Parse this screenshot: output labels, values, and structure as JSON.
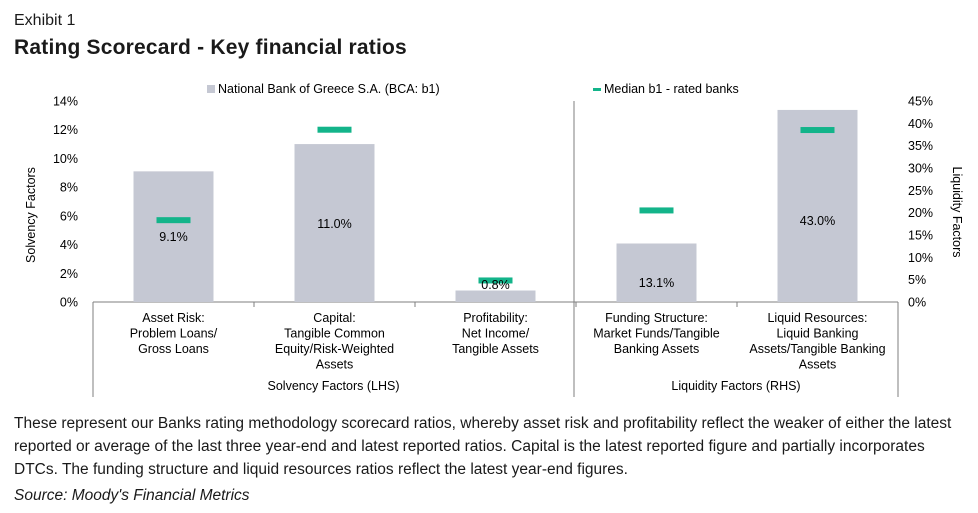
{
  "header": {
    "exhibit": "Exhibit 1",
    "title": "Rating Scorecard - Key financial ratios"
  },
  "legend": {
    "bank": "National Bank of Greece S.A. (BCA: b1)",
    "median": "Median b1 - rated banks"
  },
  "colors": {
    "bar": "#c5c8d3",
    "median": "#13b48a",
    "axis": "#7f7f7f"
  },
  "chart_data": {
    "type": "bar",
    "title": "Rating Scorecard - Key financial ratios",
    "left_axis": {
      "label": "Solvency Factors",
      "ticks": [
        "0%",
        "2%",
        "4%",
        "6%",
        "8%",
        "10%",
        "12%",
        "14%"
      ],
      "ylim": [
        0,
        14
      ]
    },
    "right_axis": {
      "label": "Liquidity Factors",
      "ticks": [
        "0%",
        "5%",
        "10%",
        "15%",
        "20%",
        "25%",
        "30%",
        "35%",
        "40%",
        "45%"
      ],
      "ylim": [
        0,
        45
      ]
    },
    "categories": [
      {
        "lines": [
          "Asset Risk:",
          "Problem Loans/",
          "Gross Loans"
        ],
        "axis": "left",
        "value": 9.1,
        "label": "9.1%",
        "median": 5.7
      },
      {
        "lines": [
          "Capital:",
          "Tangible Common",
          "Equity/Risk-Weighted",
          "Assets"
        ],
        "axis": "left",
        "value": 11.0,
        "label": "11.0%",
        "median": 12.0
      },
      {
        "lines": [
          "Profitability:",
          "Net Income/",
          "Tangible Assets"
        ],
        "axis": "left",
        "value": 0.8,
        "label": "0.8%",
        "median": 1.5
      },
      {
        "lines": [
          "Funding Structure:",
          "Market Funds/Tangible",
          "Banking Assets"
        ],
        "axis": "right",
        "value": 13.1,
        "label": "13.1%",
        "median": 20.5
      },
      {
        "lines": [
          "Liquid Resources:",
          "Liquid Banking",
          "Assets/Tangible Banking",
          "Assets"
        ],
        "axis": "right",
        "value": 43.0,
        "label": "43.0%",
        "median": 38.5
      }
    ],
    "groups": [
      {
        "label": "Solvency Factors (LHS)"
      },
      {
        "label": "Liquidity Factors (RHS)"
      }
    ]
  },
  "footer": {
    "note": "These represent our Banks rating methodology scorecard ratios, whereby asset risk and profitability reflect the weaker of either the latest reported or average of the last three year-end and latest reported ratios. Capital is the latest reported figure and partially incorporates DTCs. The funding structure and liquid resources ratios reflect the latest year-end figures.",
    "source": "Source: Moody's Financial Metrics"
  }
}
